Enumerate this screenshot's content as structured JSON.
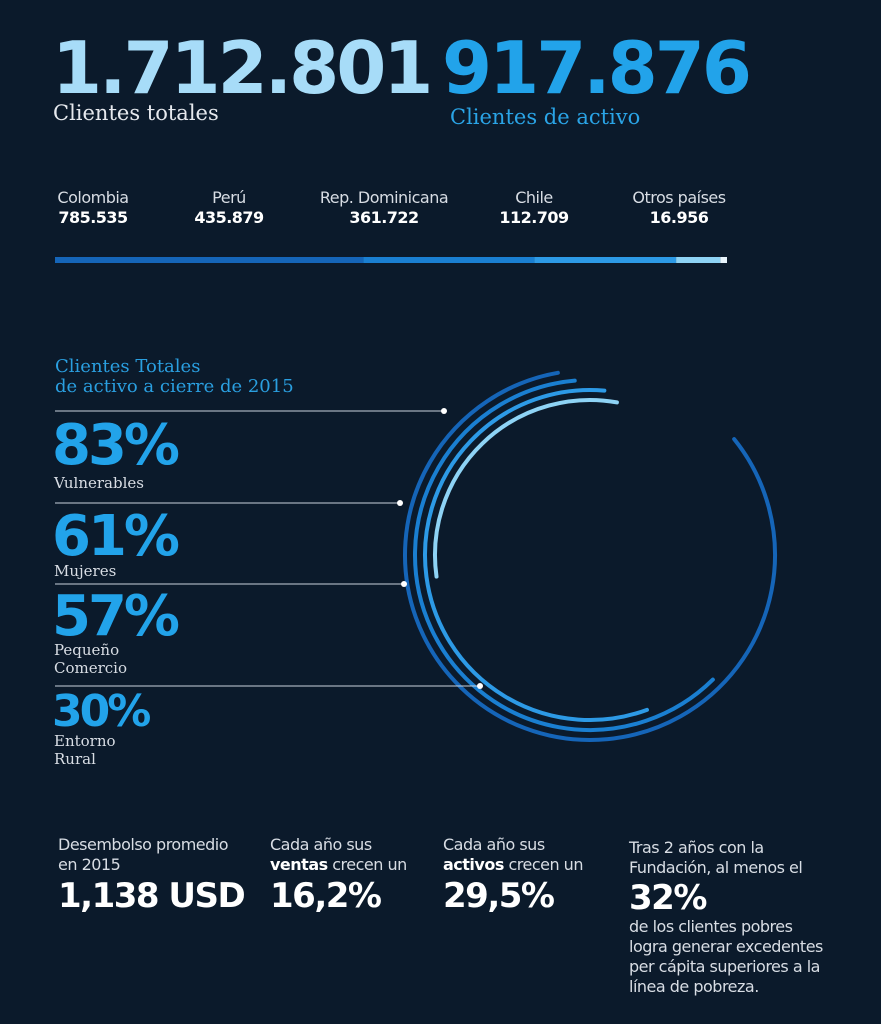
{
  "header": {
    "total_value": "1.712.801",
    "total_label": "Clientes totales",
    "active_value": "917.876",
    "active_label": "Clientes de activo"
  },
  "countries": [
    {
      "name": "Colombia",
      "value": "785.535"
    },
    {
      "name": "Perú",
      "value": "435.879"
    },
    {
      "name": "Rep. Dominicana",
      "value": "361.722"
    },
    {
      "name": "Chile",
      "value": "112.709"
    },
    {
      "name": "Otros países",
      "value": "16.956"
    }
  ],
  "colors": {
    "background": "#0b1a2b",
    "accent": "#22a3ea",
    "light_blue": "#8ed3f5",
    "mid_blue": "#1a7fd1",
    "dark_blue": "#1565b8"
  },
  "chart_data": [
    {
      "type": "bar",
      "stacked": true,
      "categories": [
        "Colombia",
        "Perú",
        "Rep. Dominicana",
        "Chile",
        "Otros países"
      ],
      "values": [
        785535,
        435879,
        361722,
        112709,
        16956
      ]
    },
    {
      "type": "pie",
      "title": "Clientes Totales de activo a cierre de 2015",
      "categories": [
        "Vulnerables",
        "Mujeres",
        "Pequeño Comercio",
        "Entorno Rural"
      ],
      "values": [
        83,
        61,
        57,
        30
      ],
      "unit": "%"
    }
  ],
  "rings": {
    "title_line1": "Clientes Totales",
    "title_line2": "de activo a cierre de 2015",
    "items": [
      {
        "pct": "83%",
        "label1": "Vulnerables",
        "label2": ""
      },
      {
        "pct": "61%",
        "label1": "Mujeres",
        "label2": ""
      },
      {
        "pct": "57%",
        "label1": "Pequeño",
        "label2": "Comercio"
      },
      {
        "pct": "30%",
        "label1": "Entorno",
        "label2": "Rural"
      }
    ]
  },
  "stats": {
    "s1_line1": "Desembolso promedio",
    "s1_line2": "en 2015",
    "s1_big": "1,138 USD",
    "s2_line1": "Cada año sus",
    "s2_bold": "ventas",
    "s2_rest": " crecen un",
    "s2_big": "16,2%",
    "s3_line1": "Cada año sus",
    "s3_bold": "activos",
    "s3_rest": " crecen un",
    "s3_big": "29,5%",
    "s4_line1": "Tras 2 años con la",
    "s4_line2": "Fundación, al menos el",
    "s4_big": "32%",
    "s4_line3": "de los clientes pobres",
    "s4_line4": "logra generar excedentes",
    "s4_line5": "per cápita superiores a la",
    "s4_line6": "línea de pobreza."
  }
}
